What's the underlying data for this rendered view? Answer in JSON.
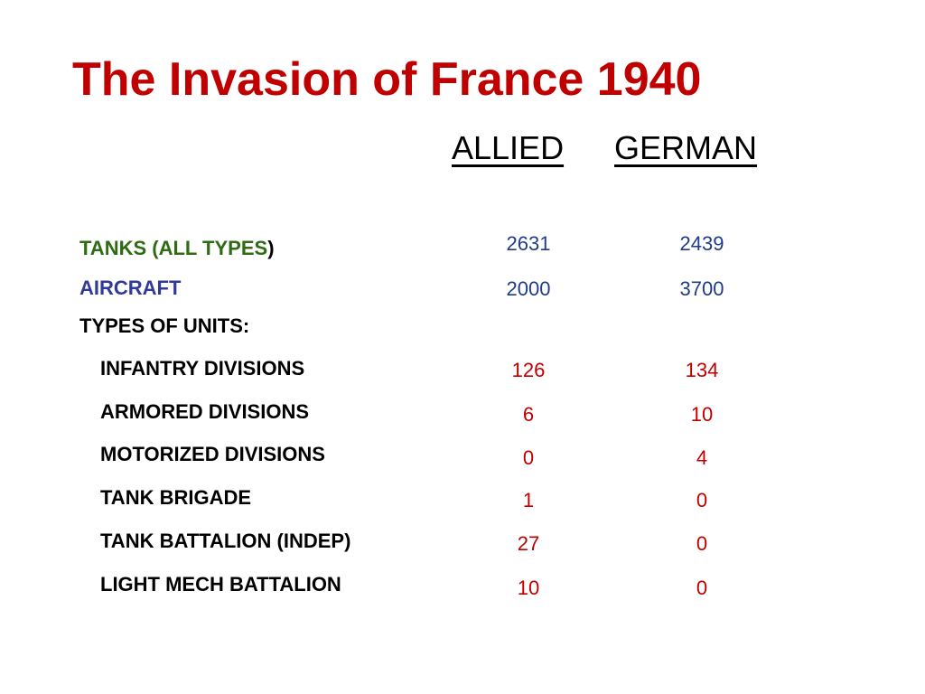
{
  "title": "The Invasion of France 1940",
  "headers": {
    "allied": "ALLIED",
    "german": "GERMAN"
  },
  "summary_rows": [
    {
      "label": "TANKS (ALL TYPES",
      "label_suffix": ")",
      "allied": "2631",
      "german": "2439"
    },
    {
      "label": "AIRCRAFT",
      "allied": "2000",
      "german": "3700"
    }
  ],
  "units_heading": "TYPES OF UNITS:",
  "unit_rows": [
    {
      "label": "INFANTRY DIVISIONS",
      "allied": "126",
      "german": "134"
    },
    {
      "label": "ARMORED DIVISIONS",
      "allied": "6",
      "german": "10"
    },
    {
      "label": "MOTORIZED DIVISIONS",
      "allied": "0",
      "german": "4"
    },
    {
      "label": "TANK BRIGADE",
      "allied": "1",
      "german": "0"
    },
    {
      "label": "TANK BATTALION (INDEP)",
      "allied": "27",
      "german": "0"
    },
    {
      "label": "LIGHT MECH BATTALION",
      "allied": "10",
      "german": "0"
    }
  ],
  "colors": {
    "title": "#c00000",
    "tanks_label": "#2e6b12",
    "aircraft_label": "#2f3a9b",
    "summary_values": "#1f3b8a",
    "unit_values": "#c00000"
  }
}
